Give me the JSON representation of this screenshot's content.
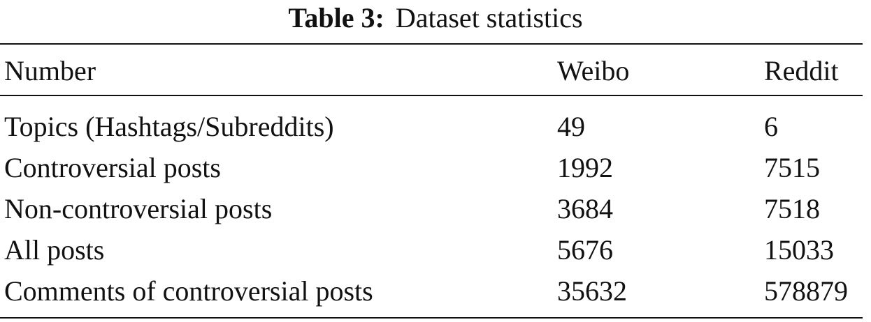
{
  "caption": {
    "label": "Table 3:",
    "title": "Dataset statistics"
  },
  "table": {
    "columns": [
      "Number",
      "Weibo",
      "Reddit"
    ],
    "rows": [
      {
        "name": "Topics (Hashtags/Subreddits)",
        "weibo": "49",
        "reddit": "6"
      },
      {
        "name": "Controversial posts",
        "weibo": "1992",
        "reddit": "7515"
      },
      {
        "name": "Non-controversial posts",
        "weibo": "3684",
        "reddit": "7518"
      },
      {
        "name": "All posts",
        "weibo": "5676",
        "reddit": "15033"
      },
      {
        "name": "Comments of controversial posts",
        "weibo": "35632",
        "reddit": "578879"
      }
    ]
  }
}
